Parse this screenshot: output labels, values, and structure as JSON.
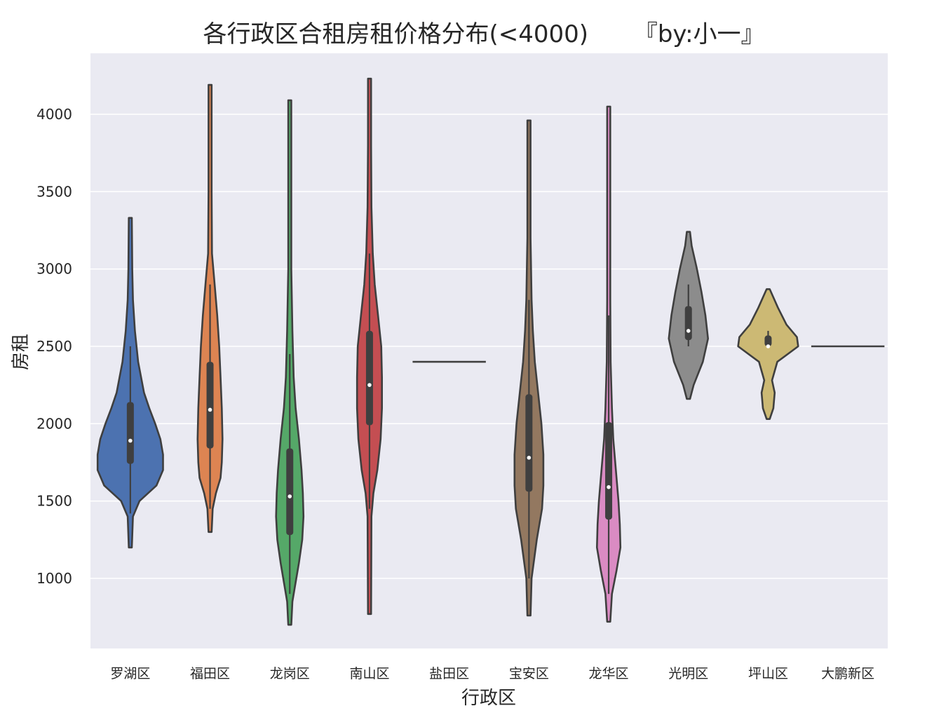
{
  "chart_data": {
    "type": "violin",
    "title": "各行政区合租房租价格分布(<4000)      『by:小一』",
    "xlabel": "行政区",
    "ylabel": "房租",
    "ylim": [
      600,
      4350
    ],
    "yticks": [
      1000,
      1500,
      2000,
      2500,
      3000,
      3500,
      4000
    ],
    "grid": true,
    "background": "#eaeaf2",
    "categories": [
      "罗湖区",
      "福田区",
      "龙岗区",
      "南山区",
      "盐田区",
      "宝安区",
      "龙华区",
      "光明区",
      "坪山区",
      "大鹏新区"
    ],
    "violins": [
      {
        "category": "罗湖区",
        "color": "#4c72b0",
        "min": 1200,
        "max": 3330,
        "q1": 1740,
        "median": 1890,
        "q3": 2140,
        "whisker_low": 1420,
        "whisker_high": 2500,
        "profile": [
          [
            1200,
            2
          ],
          [
            1400,
            4
          ],
          [
            1500,
            14
          ],
          [
            1600,
            40
          ],
          [
            1700,
            50
          ],
          [
            1800,
            50
          ],
          [
            1900,
            46
          ],
          [
            2000,
            38
          ],
          [
            2100,
            29
          ],
          [
            2200,
            21
          ],
          [
            2400,
            12
          ],
          [
            2600,
            7
          ],
          [
            2800,
            4
          ],
          [
            3000,
            3
          ],
          [
            3330,
            2
          ]
        ]
      },
      {
        "category": "福田区",
        "color": "#dd8452",
        "min": 1300,
        "max": 4190,
        "q1": 1840,
        "median": 2090,
        "q3": 2400,
        "whisker_low": 1450,
        "whisker_high": 2900,
        "profile": [
          [
            1300,
            2
          ],
          [
            1450,
            4
          ],
          [
            1550,
            9
          ],
          [
            1650,
            16
          ],
          [
            1750,
            18
          ],
          [
            1900,
            19
          ],
          [
            2100,
            18
          ],
          [
            2300,
            16
          ],
          [
            2500,
            14
          ],
          [
            2700,
            11
          ],
          [
            2900,
            7
          ],
          [
            3100,
            3
          ],
          [
            3500,
            2
          ],
          [
            4190,
            2
          ]
        ]
      },
      {
        "category": "龙岗区",
        "color": "#55a868",
        "min": 700,
        "max": 4090,
        "q1": 1280,
        "median": 1530,
        "q3": 1840,
        "whisker_low": 900,
        "whisker_high": 2450,
        "profile": [
          [
            700,
            2
          ],
          [
            850,
            4
          ],
          [
            950,
            8
          ],
          [
            1100,
            14
          ],
          [
            1250,
            19
          ],
          [
            1400,
            21
          ],
          [
            1550,
            20
          ],
          [
            1700,
            18
          ],
          [
            1900,
            14
          ],
          [
            2100,
            9
          ],
          [
            2300,
            6
          ],
          [
            2600,
            4
          ],
          [
            3000,
            2
          ],
          [
            4090,
            2
          ]
        ]
      },
      {
        "category": "南山区",
        "color": "#c44e52",
        "min": 770,
        "max": 4230,
        "q1": 1990,
        "median": 2250,
        "q3": 2600,
        "whisker_low": 1450,
        "whisker_high": 3100,
        "profile": [
          [
            770,
            2
          ],
          [
            1400,
            3
          ],
          [
            1550,
            6
          ],
          [
            1700,
            12
          ],
          [
            1900,
            17
          ],
          [
            2100,
            19
          ],
          [
            2300,
            19
          ],
          [
            2500,
            18
          ],
          [
            2700,
            13
          ],
          [
            2900,
            8
          ],
          [
            3100,
            5
          ],
          [
            3400,
            3
          ],
          [
            3800,
            2
          ],
          [
            4230,
            2
          ]
        ]
      },
      {
        "category": "盐田区",
        "color": "#8172b3",
        "value": 2400,
        "single": true
      },
      {
        "category": "宝安区",
        "color": "#937860",
        "min": 760,
        "max": 3960,
        "q1": 1560,
        "median": 1780,
        "q3": 2190,
        "whisker_low": 1000,
        "whisker_high": 2800,
        "profile": [
          [
            760,
            2
          ],
          [
            1000,
            4
          ],
          [
            1250,
            12
          ],
          [
            1450,
            20
          ],
          [
            1600,
            22
          ],
          [
            1800,
            22
          ],
          [
            2000,
            19
          ],
          [
            2200,
            14
          ],
          [
            2400,
            9
          ],
          [
            2600,
            6
          ],
          [
            2800,
            4
          ],
          [
            3200,
            2
          ],
          [
            3960,
            2
          ]
        ]
      },
      {
        "category": "龙华区",
        "color": "#da8bc3",
        "min": 720,
        "max": 4050,
        "q1": 1380,
        "median": 1590,
        "q3": 2010,
        "whisker_low": 900,
        "whisker_high": 2700,
        "profile": [
          [
            720,
            2
          ],
          [
            900,
            5
          ],
          [
            1050,
            12
          ],
          [
            1200,
            18
          ],
          [
            1350,
            17
          ],
          [
            1500,
            15
          ],
          [
            1700,
            11
          ],
          [
            1900,
            7
          ],
          [
            2100,
            5
          ],
          [
            2400,
            3
          ],
          [
            2800,
            2
          ],
          [
            4050,
            2
          ]
        ]
      },
      {
        "category": "光明区",
        "color": "#8c8c8c",
        "min": 2160,
        "max": 3240,
        "q1": 2540,
        "median": 2600,
        "q3": 2760,
        "whisker_low": 2500,
        "whisker_high": 2900,
        "profile": [
          [
            2160,
            2
          ],
          [
            2250,
            8
          ],
          [
            2400,
            22
          ],
          [
            2550,
            30
          ],
          [
            2700,
            26
          ],
          [
            2850,
            20
          ],
          [
            3000,
            13
          ],
          [
            3150,
            5
          ],
          [
            3240,
            2
          ]
        ]
      },
      {
        "category": "坪山区",
        "color": "#ccb974",
        "min": 2030,
        "max": 2870,
        "q1": 2500,
        "median": 2500,
        "q3": 2570,
        "whisker_low": 2500,
        "whisker_high": 2600,
        "profile": [
          [
            2030,
            2
          ],
          [
            2100,
            8
          ],
          [
            2200,
            10
          ],
          [
            2280,
            6
          ],
          [
            2400,
            14
          ],
          [
            2500,
            46
          ],
          [
            2560,
            44
          ],
          [
            2640,
            28
          ],
          [
            2750,
            15
          ],
          [
            2870,
            2
          ]
        ]
      },
      {
        "category": "大鹏新区",
        "color": "#64b5cd",
        "value": 2500,
        "single": true
      }
    ]
  }
}
